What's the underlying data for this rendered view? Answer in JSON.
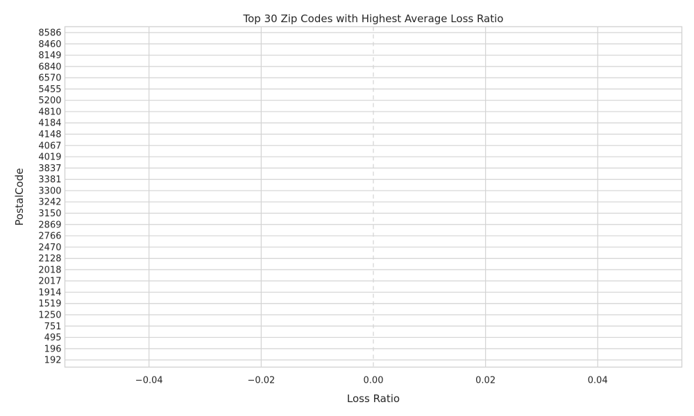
{
  "chart_data": {
    "type": "bar",
    "orientation": "horizontal",
    "title": "Top 30 Zip Codes with Highest Average Loss Ratio",
    "xlabel": "Loss Ratio",
    "ylabel": "PostalCode",
    "categories": [
      "8586",
      "8460",
      "8149",
      "6840",
      "6570",
      "5455",
      "5200",
      "4810",
      "4184",
      "4148",
      "4067",
      "4019",
      "3837",
      "3381",
      "3300",
      "3242",
      "3150",
      "2869",
      "2766",
      "2470",
      "2128",
      "2018",
      "2017",
      "1914",
      "1519",
      "1250",
      "751",
      "495",
      "196",
      "192"
    ],
    "values": [
      0,
      0,
      0,
      0,
      0,
      0,
      0,
      0,
      0,
      0,
      0,
      0,
      0,
      0,
      0,
      0,
      0,
      0,
      0,
      0,
      0,
      0,
      0,
      0,
      0,
      0,
      0,
      0,
      0,
      0
    ],
    "xlim": [
      -0.055,
      0.055
    ],
    "xticks": [
      -0.04,
      -0.02,
      0.0,
      0.02,
      0.04
    ],
    "xtick_labels": [
      "−0.04",
      "−0.02",
      "0.00",
      "0.02",
      "0.04"
    ],
    "grid": true,
    "vline_at_zero": "dashed",
    "colors": {
      "grid": "#d3d3d3",
      "text": "#262626",
      "background": "#ffffff"
    }
  }
}
